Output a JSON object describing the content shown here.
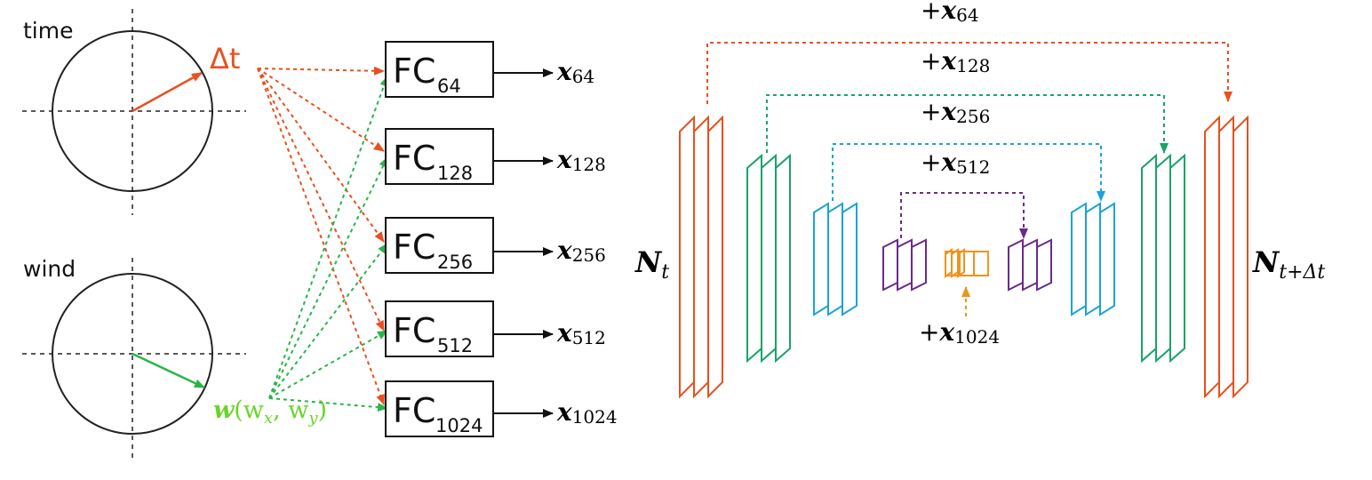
{
  "inputs": {
    "time_label": "time",
    "wind_label": "wind",
    "delta_t": "Δt",
    "wind_vector": {
      "symbol": "w",
      "args": "(w",
      "x_sub": "x",
      "sep": ", w",
      "y_sub": "y",
      "close": ")"
    }
  },
  "fc_blocks": [
    {
      "name": "FC",
      "size": "64"
    },
    {
      "name": "FC",
      "size": "128"
    },
    {
      "name": "FC",
      "size": "256"
    },
    {
      "name": "FC",
      "size": "512"
    },
    {
      "name": "FC",
      "size": "1024"
    }
  ],
  "fc_outputs": [
    {
      "symbol": "x",
      "sub": "64"
    },
    {
      "symbol": "x",
      "sub": "128"
    },
    {
      "symbol": "x",
      "sub": "256"
    },
    {
      "symbol": "x",
      "sub": "512"
    },
    {
      "symbol": "x",
      "sub": "1024"
    }
  ],
  "unet": {
    "input_label": {
      "symbol": "N",
      "sub": "t"
    },
    "output_label": {
      "symbol": "N",
      "sub": "t+Δt"
    },
    "skip_labels": [
      {
        "prefix": "+",
        "symbol": "x",
        "sub": "64"
      },
      {
        "prefix": "+",
        "symbol": "x",
        "sub": "128"
      },
      {
        "prefix": "+",
        "symbol": "x",
        "sub": "256"
      },
      {
        "prefix": "+",
        "symbol": "x",
        "sub": "512"
      }
    ],
    "bottleneck_label": {
      "prefix": "+",
      "symbol": "x",
      "sub": "1024"
    }
  },
  "colors": {
    "level_64": "#e8501e",
    "level_128": "#1aa36a",
    "level_256": "#1ba3d8",
    "level_512": "#6a2a8c",
    "level_1024": "#f0931e",
    "delta_t": "#e8501e",
    "wind": "#2ab54a",
    "wind_text": "#6ad42a",
    "ink": "#111111"
  }
}
